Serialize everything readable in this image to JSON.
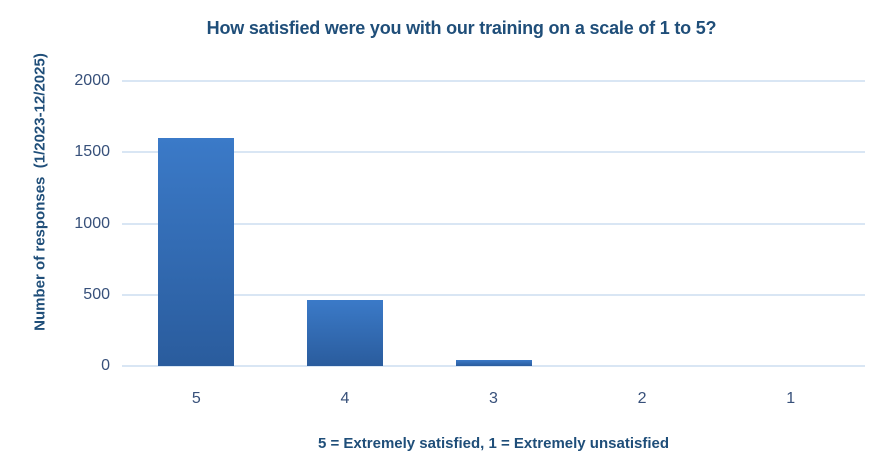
{
  "chart_data": {
    "type": "bar",
    "title": "How satisfied were you with our training on a scale of 1 to 5?",
    "categories": [
      "5",
      "4",
      "3",
      "2",
      "1"
    ],
    "values": [
      1600,
      460,
      45,
      0,
      0
    ],
    "xlabel": "5 = Extremely satisfied, 1 = Extremely unsatisfied",
    "ylabel": "Number of responses  (1/2023-12/2025)",
    "ylim": [
      0,
      2000
    ],
    "yticks": [
      0,
      500,
      1000,
      1500,
      2000
    ],
    "grid": true,
    "legend_position": "none",
    "colors": {
      "bar_gradient_top": "#3B7AC8",
      "bar_gradient_bottom": "#2A5C9D",
      "title_text": "#1F4E79",
      "tick_text": "#37507A",
      "gridline": "#D9E6F4",
      "background": "#FFFFFF"
    }
  }
}
